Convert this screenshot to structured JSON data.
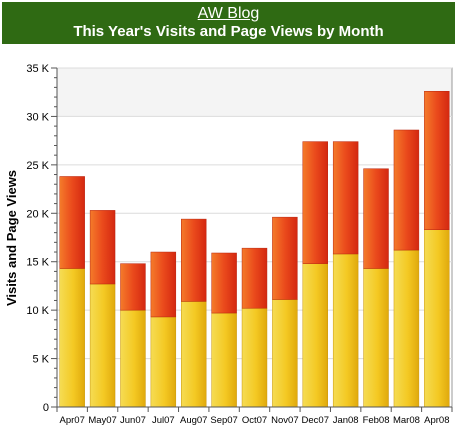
{
  "header": {
    "blog_link": "AW Blog",
    "title": "This Year's Visits and Page Views by Month"
  },
  "chart_data": {
    "type": "bar",
    "stacked": true,
    "title": "This Year's Visits and Page Views by Month",
    "ylabel": "Visits and Page Views",
    "xlabel": "",
    "ylim": [
      0,
      35000
    ],
    "yticks": [
      0,
      5000,
      10000,
      15000,
      20000,
      25000,
      30000,
      35000
    ],
    "ytick_labels": [
      "0",
      "5 K",
      "10 K",
      "15 K",
      "20 K",
      "25 K",
      "30 K",
      "35 K"
    ],
    "grid": true,
    "categories": [
      "Apr07",
      "May07",
      "Jun07",
      "Jul07",
      "Aug07",
      "Sep07",
      "Oct07",
      "Nov07",
      "Dec07",
      "Jan08",
      "Feb08",
      "Mar08",
      "Apr08"
    ],
    "series": [
      {
        "values": [
          14300,
          12700,
          10000,
          9300,
          10900,
          9700,
          10200,
          11100,
          14800,
          15800,
          14300,
          16200,
          18300
        ],
        "color": "#f2c11e"
      },
      {
        "values": [
          9500,
          7600,
          4800,
          6700,
          8500,
          6200,
          6200,
          8500,
          12600,
          11600,
          10300,
          12400,
          14300
        ],
        "color": "#e8401a"
      }
    ],
    "totals": [
      23800,
      20300,
      14800,
      16000,
      19400,
      15900,
      16400,
      19600,
      27400,
      27400,
      24600,
      28600,
      32600
    ]
  }
}
